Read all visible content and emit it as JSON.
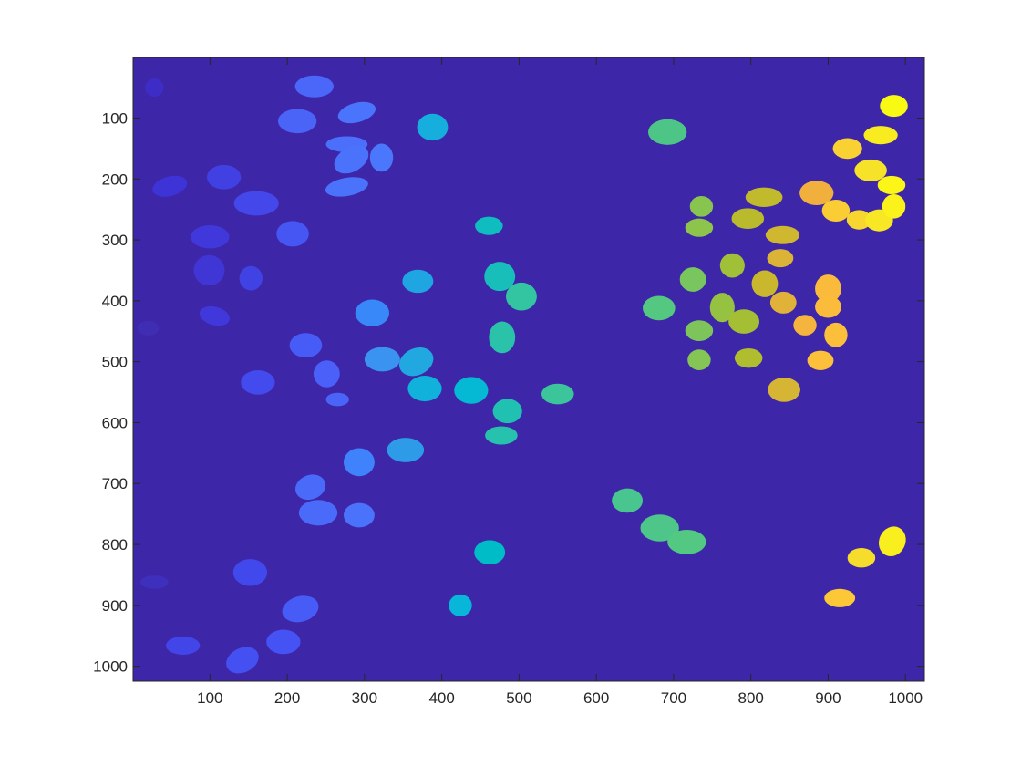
{
  "chart_data": {
    "type": "heatmap",
    "title": "",
    "xlabel": "",
    "ylabel": "",
    "xlim": [
      0.5,
      1024.5
    ],
    "ylim": [
      0.5,
      1024.5
    ],
    "y_reversed": true,
    "background_color": "#3e26a8",
    "colormap": "parula",
    "x_ticks": [
      100,
      200,
      300,
      400,
      500,
      600,
      700,
      800,
      900,
      1000
    ],
    "y_ticks": [
      100,
      200,
      300,
      400,
      500,
      600,
      700,
      800,
      900,
      1000
    ],
    "x_tick_labels": [
      "100",
      "200",
      "300",
      "400",
      "500",
      "600",
      "700",
      "800",
      "900",
      "1000"
    ],
    "y_tick_labels": [
      "100",
      "200",
      "300",
      "400",
      "500",
      "600",
      "700",
      "800",
      "900",
      "1000"
    ],
    "blobs": [
      {
        "x": 28,
        "y": 50,
        "rx": 12,
        "ry": 15,
        "rot": 0,
        "color": "#3d2cc6"
      },
      {
        "x": 48,
        "y": 212,
        "rx": 23,
        "ry": 16,
        "rot": -15,
        "color": "#3e33d6"
      },
      {
        "x": 20,
        "y": 445,
        "rx": 14,
        "ry": 12,
        "rot": 0,
        "color": "#3f2db3"
      },
      {
        "x": 28,
        "y": 862,
        "rx": 18,
        "ry": 11,
        "rot": 0,
        "color": "#3e2fbd"
      },
      {
        "x": 118,
        "y": 197,
        "rx": 22,
        "ry": 20,
        "rot": 0,
        "color": "#4040e3"
      },
      {
        "x": 100,
        "y": 295,
        "rx": 25,
        "ry": 19,
        "rot": 0,
        "color": "#4038db"
      },
      {
        "x": 99,
        "y": 350,
        "rx": 20,
        "ry": 25,
        "rot": 0,
        "color": "#4036d6"
      },
      {
        "x": 106,
        "y": 425,
        "rx": 20,
        "ry": 15,
        "rot": 15,
        "color": "#4038da"
      },
      {
        "x": 153,
        "y": 363,
        "rx": 15,
        "ry": 20,
        "rot": 0,
        "color": "#4142e4"
      },
      {
        "x": 160,
        "y": 240,
        "rx": 29,
        "ry": 20,
        "rot": 0,
        "color": "#4447ea"
      },
      {
        "x": 65,
        "y": 966,
        "rx": 22,
        "ry": 15,
        "rot": 0,
        "color": "#4246e8"
      },
      {
        "x": 152,
        "y": 846,
        "rx": 22,
        "ry": 22,
        "rot": 0,
        "color": "#4249ec"
      },
      {
        "x": 162,
        "y": 534,
        "rx": 22,
        "ry": 20,
        "rot": 0,
        "color": "#434aee"
      },
      {
        "x": 142,
        "y": 990,
        "rx": 22,
        "ry": 20,
        "rot": -25,
        "color": "#4550f2"
      },
      {
        "x": 195,
        "y": 960,
        "rx": 22,
        "ry": 20,
        "rot": 0,
        "color": "#4653f4"
      },
      {
        "x": 207,
        "y": 290,
        "rx": 21,
        "ry": 21,
        "rot": 0,
        "color": "#4556f3"
      },
      {
        "x": 224,
        "y": 473,
        "rx": 21,
        "ry": 20,
        "rot": 0,
        "color": "#475bf6"
      },
      {
        "x": 217,
        "y": 906,
        "rx": 24,
        "ry": 21,
        "rot": -15,
        "color": "#475bf6"
      },
      {
        "x": 251,
        "y": 520,
        "rx": 17,
        "ry": 22,
        "rot": 0,
        "color": "#4a60f8"
      },
      {
        "x": 265,
        "y": 562,
        "rx": 15,
        "ry": 11,
        "rot": 0,
        "color": "#4a64f8"
      },
      {
        "x": 213,
        "y": 105,
        "rx": 25,
        "ry": 20,
        "rot": 0,
        "color": "#4a64f8"
      },
      {
        "x": 235,
        "y": 48,
        "rx": 25,
        "ry": 18,
        "rot": 0,
        "color": "#4a67f9"
      },
      {
        "x": 230,
        "y": 706,
        "rx": 20,
        "ry": 20,
        "rot": -20,
        "color": "#4a6bf9"
      },
      {
        "x": 240,
        "y": 748,
        "rx": 25,
        "ry": 21,
        "rot": 0,
        "color": "#4a6bf9"
      },
      {
        "x": 293,
        "y": 752,
        "rx": 20,
        "ry": 20,
        "rot": 0,
        "color": "#4b72fb"
      },
      {
        "x": 277,
        "y": 213,
        "rx": 28,
        "ry": 15,
        "rot": -10,
        "color": "#4b72fb"
      },
      {
        "x": 277,
        "y": 143,
        "rx": 27,
        "ry": 13,
        "rot": 0,
        "color": "#4b6ffa"
      },
      {
        "x": 283,
        "y": 168,
        "rx": 24,
        "ry": 20,
        "rot": -30,
        "color": "#4b72fb"
      },
      {
        "x": 290,
        "y": 91,
        "rx": 25,
        "ry": 16,
        "rot": -15,
        "color": "#4b74fc"
      },
      {
        "x": 322,
        "y": 165,
        "rx": 15,
        "ry": 23,
        "rot": 0,
        "color": "#4b77fc"
      },
      {
        "x": 293,
        "y": 665,
        "rx": 20,
        "ry": 23,
        "rot": 0,
        "color": "#3f82fb"
      },
      {
        "x": 310,
        "y": 420,
        "rx": 22,
        "ry": 22,
        "rot": 0,
        "color": "#3888fa"
      },
      {
        "x": 323,
        "y": 496,
        "rx": 23,
        "ry": 20,
        "rot": 0,
        "color": "#3a93f0"
      },
      {
        "x": 353,
        "y": 645,
        "rx": 24,
        "ry": 20,
        "rot": 0,
        "color": "#2d9be8"
      },
      {
        "x": 369,
        "y": 368,
        "rx": 20,
        "ry": 19,
        "rot": 0,
        "color": "#1fa5e1"
      },
      {
        "x": 367,
        "y": 500,
        "rx": 23,
        "ry": 22,
        "rot": -25,
        "color": "#22a8e0"
      },
      {
        "x": 388,
        "y": 115,
        "rx": 20,
        "ry": 22,
        "rot": 0,
        "color": "#16aedc"
      },
      {
        "x": 378,
        "y": 544,
        "rx": 22,
        "ry": 21,
        "rot": 0,
        "color": "#10b1db"
      },
      {
        "x": 424,
        "y": 900,
        "rx": 15,
        "ry": 18,
        "rot": 0,
        "color": "#07b6d8"
      },
      {
        "x": 438,
        "y": 547,
        "rx": 22,
        "ry": 22,
        "rot": 0,
        "color": "#05b8d3"
      },
      {
        "x": 462,
        "y": 813,
        "rx": 20,
        "ry": 20,
        "rot": 0,
        "color": "#00bcc7"
      },
      {
        "x": 461,
        "y": 277,
        "rx": 18,
        "ry": 15,
        "rot": 0,
        "color": "#0fbdc0"
      },
      {
        "x": 475,
        "y": 360,
        "rx": 20,
        "ry": 24,
        "rot": 0,
        "color": "#18bfba"
      },
      {
        "x": 485,
        "y": 581,
        "rx": 19,
        "ry": 20,
        "rot": 0,
        "color": "#21c1b2"
      },
      {
        "x": 477,
        "y": 621,
        "rx": 21,
        "ry": 15,
        "rot": 0,
        "color": "#27c2ad"
      },
      {
        "x": 478,
        "y": 460,
        "rx": 17,
        "ry": 26,
        "rot": 0,
        "color": "#2ac3a9"
      },
      {
        "x": 503,
        "y": 393,
        "rx": 20,
        "ry": 23,
        "rot": 0,
        "color": "#33c5a1"
      },
      {
        "x": 550,
        "y": 553,
        "rx": 21,
        "ry": 17,
        "rot": 0,
        "color": "#3cc59b"
      },
      {
        "x": 640,
        "y": 728,
        "rx": 20,
        "ry": 20,
        "rot": 0,
        "color": "#49c58f"
      },
      {
        "x": 682,
        "y": 773,
        "rx": 25,
        "ry": 22,
        "rot": 0,
        "color": "#4ec689"
      },
      {
        "x": 692,
        "y": 123,
        "rx": 25,
        "ry": 21,
        "rot": 0,
        "color": "#4dc586"
      },
      {
        "x": 681,
        "y": 412,
        "rx": 21,
        "ry": 20,
        "rot": 0,
        "color": "#54c780"
      },
      {
        "x": 717,
        "y": 796,
        "rx": 25,
        "ry": 20,
        "rot": 0,
        "color": "#52c883"
      },
      {
        "x": 725,
        "y": 365,
        "rx": 17,
        "ry": 20,
        "rot": 0,
        "color": "#79c65f"
      },
      {
        "x": 733,
        "y": 449,
        "rx": 18,
        "ry": 17,
        "rot": 0,
        "color": "#7dc55b"
      },
      {
        "x": 733,
        "y": 497,
        "rx": 15,
        "ry": 17,
        "rot": 0,
        "color": "#84c555"
      },
      {
        "x": 736,
        "y": 245,
        "rx": 15,
        "ry": 17,
        "rot": 0,
        "color": "#87c450"
      },
      {
        "x": 733,
        "y": 280,
        "rx": 18,
        "ry": 15,
        "rot": 0,
        "color": "#8cc44c"
      },
      {
        "x": 763,
        "y": 411,
        "rx": 16,
        "ry": 24,
        "rot": 0,
        "color": "#96c242"
      },
      {
        "x": 776,
        "y": 342,
        "rx": 16,
        "ry": 20,
        "rot": 0,
        "color": "#a0c038"
      },
      {
        "x": 791,
        "y": 434,
        "rx": 20,
        "ry": 20,
        "rot": 0,
        "color": "#a4bf34"
      },
      {
        "x": 797,
        "y": 494,
        "rx": 18,
        "ry": 16,
        "rot": 0,
        "color": "#b0bd2e"
      },
      {
        "x": 796,
        "y": 265,
        "rx": 21,
        "ry": 17,
        "rot": 0,
        "color": "#b9bb2c"
      },
      {
        "x": 817,
        "y": 230,
        "rx": 24,
        "ry": 16,
        "rot": 0,
        "color": "#c1ba2c"
      },
      {
        "x": 818,
        "y": 372,
        "rx": 17,
        "ry": 22,
        "rot": 0,
        "color": "#c9b82e"
      },
      {
        "x": 841,
        "y": 292,
        "rx": 22,
        "ry": 15,
        "rot": 0,
        "color": "#d0b730"
      },
      {
        "x": 843,
        "y": 546,
        "rx": 21,
        "ry": 20,
        "rot": 0,
        "color": "#d5b533"
      },
      {
        "x": 838,
        "y": 330,
        "rx": 17,
        "ry": 15,
        "rot": 0,
        "color": "#dbb336"
      },
      {
        "x": 842,
        "y": 403,
        "rx": 17,
        "ry": 18,
        "rot": 0,
        "color": "#e1b23a"
      },
      {
        "x": 885,
        "y": 223,
        "rx": 22,
        "ry": 20,
        "rot": 0,
        "color": "#f1b03e"
      },
      {
        "x": 870,
        "y": 440,
        "rx": 15,
        "ry": 17,
        "rot": 0,
        "color": "#f5b43d"
      },
      {
        "x": 900,
        "y": 380,
        "rx": 17,
        "ry": 23,
        "rot": 0,
        "color": "#faba3c"
      },
      {
        "x": 900,
        "y": 410,
        "rx": 17,
        "ry": 18,
        "rot": 0,
        "color": "#fbbc3c"
      },
      {
        "x": 910,
        "y": 456,
        "rx": 15,
        "ry": 20,
        "rot": 0,
        "color": "#fcbf3b"
      },
      {
        "x": 890,
        "y": 498,
        "rx": 17,
        "ry": 16,
        "rot": 0,
        "color": "#fdc03a"
      },
      {
        "x": 915,
        "y": 888,
        "rx": 20,
        "ry": 15,
        "rot": 0,
        "color": "#fcc838"
      },
      {
        "x": 910,
        "y": 252,
        "rx": 18,
        "ry": 18,
        "rot": 0,
        "color": "#fbcd35"
      },
      {
        "x": 925,
        "y": 150,
        "rx": 19,
        "ry": 17,
        "rot": 0,
        "color": "#f9d132"
      },
      {
        "x": 940,
        "y": 267,
        "rx": 16,
        "ry": 16,
        "rot": 0,
        "color": "#f7d72f"
      },
      {
        "x": 943,
        "y": 822,
        "rx": 18,
        "ry": 16,
        "rot": 0,
        "color": "#f6dd2c"
      },
      {
        "x": 955,
        "y": 186,
        "rx": 21,
        "ry": 18,
        "rot": 0,
        "color": "#f6e228"
      },
      {
        "x": 966,
        "y": 268,
        "rx": 18,
        "ry": 18,
        "rot": 0,
        "color": "#f7e724"
      },
      {
        "x": 968,
        "y": 128,
        "rx": 22,
        "ry": 15,
        "rot": 0,
        "color": "#f8ec21"
      },
      {
        "x": 983,
        "y": 795,
        "rx": 17,
        "ry": 25,
        "rot": 25,
        "color": "#f9ee1e"
      },
      {
        "x": 985,
        "y": 245,
        "rx": 15,
        "ry": 20,
        "rot": 0,
        "color": "#fbf11b"
      },
      {
        "x": 982,
        "y": 210,
        "rx": 18,
        "ry": 15,
        "rot": 0,
        "color": "#fbf518"
      },
      {
        "x": 985,
        "y": 80,
        "rx": 18,
        "ry": 18,
        "rot": 0,
        "color": "#f9fa14"
      }
    ]
  }
}
